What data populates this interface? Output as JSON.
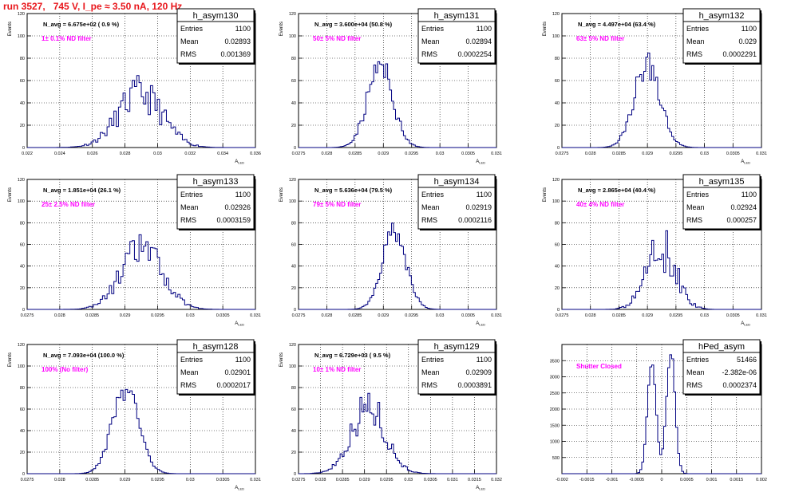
{
  "header": {
    "run_title": "run 3527,   745 V, I_pe ≈ 3.50 nA, 120 Hz"
  },
  "colors": {
    "title": "#e8161b",
    "annotation": "#ff00ff",
    "histogram": "#000080",
    "grid": "#000000"
  },
  "chart_data": [
    {
      "type": "histogram",
      "name": "h_asym130",
      "ylabel": "Events",
      "xlabel": "A_LED",
      "xlim": [
        0.022,
        0.036
      ],
      "ylim": [
        0,
        120
      ],
      "xticks": [
        "0.022",
        "0.024",
        "0.026",
        "0.028",
        "0.03",
        "0.032",
        "0.034",
        "0.036"
      ],
      "yticks": [
        "0",
        "20",
        "40",
        "60",
        "80",
        "100",
        "120"
      ],
      "stats": {
        "Entries": "1100",
        "Mean": "0.02893",
        "RMS": "0.001369"
      },
      "navg": "N_avg = 6.675e+02 ( 0.9 %)",
      "filter": "1± 0.1% ND filter",
      "mean": 0.02893,
      "rms": 0.001369,
      "peak": 48,
      "seed": 11,
      "jitter": 0.35
    },
    {
      "type": "histogram",
      "name": "h_asym131",
      "ylabel": "Events",
      "xlabel": "A_LED",
      "xlim": [
        0.0275,
        0.031
      ],
      "ylim": [
        0,
        120
      ],
      "xticks": [
        "0.0275",
        "0.028",
        "0.0285",
        "0.029",
        "0.0295",
        "0.03",
        "0.0305",
        "0.031"
      ],
      "yticks": [
        "0",
        "20",
        "40",
        "60",
        "80",
        "100",
        "120"
      ],
      "stats": {
        "Entries": "1100",
        "Mean": "0.02894",
        "RMS": "0.0002254"
      },
      "navg": "N_avg = 3.600e+04 (50.8 %)",
      "filter": "50± 5% ND filter",
      "mean": 0.02894,
      "rms": 0.0002254,
      "peak": 72,
      "seed": 23,
      "jitter": 0.2
    },
    {
      "type": "histogram",
      "name": "h_asym132",
      "ylabel": "Events",
      "xlabel": "A_LED",
      "xlim": [
        0.0275,
        0.031
      ],
      "ylim": [
        0,
        120
      ],
      "xticks": [
        "0.0275",
        "0.028",
        "0.0285",
        "0.029",
        "0.0295",
        "0.03",
        "0.0305",
        "0.031"
      ],
      "yticks": [
        "0",
        "20",
        "40",
        "60",
        "80",
        "100",
        "120"
      ],
      "stats": {
        "Entries": "1100",
        "Mean": "0.029",
        "RMS": "0.0002291"
      },
      "navg": "N_avg = 4.497e+04 (63.4 %)",
      "filter": "63± 5% ND filter",
      "mean": 0.029,
      "rms": 0.0002291,
      "peak": 74,
      "seed": 37,
      "jitter": 0.2
    },
    {
      "type": "histogram",
      "name": "h_asym133",
      "ylabel": "Events",
      "xlabel": "A_LED",
      "xlim": [
        0.0275,
        0.031
      ],
      "ylim": [
        0,
        120
      ],
      "xticks": [
        "0.0275",
        "0.028",
        "0.0285",
        "0.029",
        "0.0295",
        "0.03",
        "0.0305",
        "0.031"
      ],
      "yticks": [
        "0",
        "20",
        "40",
        "60",
        "80",
        "100",
        "120"
      ],
      "stats": {
        "Entries": "1100",
        "Mean": "0.02926",
        "RMS": "0.0003159"
      },
      "navg": "N_avg = 1.851e+04 (26.1 %)",
      "filter": "25± 2.5% ND filter",
      "mean": 0.02926,
      "rms": 0.0003159,
      "peak": 56,
      "seed": 41,
      "jitter": 0.3
    },
    {
      "type": "histogram",
      "name": "h_asym134",
      "ylabel": "Events",
      "xlabel": "A_LED",
      "xlim": [
        0.0275,
        0.031
      ],
      "ylim": [
        0,
        120
      ],
      "xticks": [
        "0.0275",
        "0.028",
        "0.0285",
        "0.029",
        "0.0295",
        "0.03",
        "0.0305",
        "0.031"
      ],
      "yticks": [
        "0",
        "20",
        "40",
        "60",
        "80",
        "100",
        "120"
      ],
      "stats": {
        "Entries": "1100",
        "Mean": "0.02919",
        "RMS": "0.0002116"
      },
      "navg": "N_avg = 5.636e+04 (79.5 %)",
      "filter": "79± 5% ND filter",
      "mean": 0.02919,
      "rms": 0.0002116,
      "peak": 72,
      "seed": 53,
      "jitter": 0.15
    },
    {
      "type": "histogram",
      "name": "h_asym135",
      "ylabel": "Events",
      "xlabel": "A_LED",
      "xlim": [
        0.0275,
        0.031
      ],
      "ylim": [
        0,
        120
      ],
      "xticks": [
        "0.0275",
        "0.028",
        "0.0285",
        "0.029",
        "0.0295",
        "0.03",
        "0.0305",
        "0.031"
      ],
      "yticks": [
        "0",
        "20",
        "40",
        "60",
        "80",
        "100",
        "120"
      ],
      "stats": {
        "Entries": "1100",
        "Mean": "0.02924",
        "RMS": "0.000257"
      },
      "navg": "N_avg = 2.865e+04 (40.4 %)",
      "filter": "40± 4% ND filter",
      "mean": 0.02924,
      "rms": 0.000257,
      "peak": 58,
      "seed": 67,
      "jitter": 0.4
    },
    {
      "type": "histogram",
      "name": "h_asym128",
      "ylabel": "Events",
      "xlabel": "A_LED",
      "xlim": [
        0.0275,
        0.031
      ],
      "ylim": [
        0,
        120
      ],
      "xticks": [
        "0.0275",
        "0.028",
        "0.0285",
        "0.029",
        "0.0295",
        "0.03",
        "0.0305",
        "0.031"
      ],
      "yticks": [
        "0",
        "20",
        "40",
        "60",
        "80",
        "100",
        "120"
      ],
      "stats": {
        "Entries": "1100",
        "Mean": "0.02901",
        "RMS": "0.0002017"
      },
      "navg": "N_avg = 7.093e+04 (100.0 %)",
      "filter": "100% (No filter)",
      "mean": 0.02901,
      "rms": 0.0002017,
      "peak": 78,
      "seed": 79,
      "jitter": 0.15
    },
    {
      "type": "histogram",
      "name": "h_asym129",
      "ylabel": "Events",
      "xlabel": "A_LED",
      "xlim": [
        0.0275,
        0.032
      ],
      "ylim": [
        0,
        120
      ],
      "xticks": [
        "0.0275",
        "0.028",
        "0.0285",
        "0.029",
        "0.0295",
        "0.03",
        "0.0305",
        "0.031",
        "0.0315",
        "0.032"
      ],
      "yticks": [
        "0",
        "20",
        "40",
        "60",
        "80",
        "100",
        "120"
      ],
      "stats": {
        "Entries": "1100",
        "Mean": "0.02909",
        "RMS": "0.0003891"
      },
      "navg": "N_avg = 6.729e+03 ( 9.5 %)",
      "filter": "10± 1% ND filter",
      "mean": 0.02909,
      "rms": 0.0003891,
      "peak": 62,
      "seed": 97,
      "jitter": 0.3
    },
    {
      "type": "histogram",
      "name": "hPed_asym",
      "ylabel": "",
      "xlabel": "",
      "xlim": [
        -0.002,
        0.002
      ],
      "ylim": [
        0,
        4000
      ],
      "xticks": [
        "-0.002",
        "-0.0015",
        "-0.001",
        "-0.0005",
        "0",
        "0.0005",
        "0.001",
        "0.0015",
        "0.002"
      ],
      "yticks": [
        "500",
        "1000",
        "1500",
        "2000",
        "2500",
        "3000",
        "3500"
      ],
      "stats": {
        "Entries": "51466",
        "Mean": "-2.382e-06",
        "RMS": "0.0002374"
      },
      "navg": "",
      "filter": "Shutter Closed",
      "bimodal": {
        "peak1": -0.0002,
        "peak2": 0.00018,
        "width": 8.5e-05,
        "height1": 3450,
        "height2": 3850
      },
      "seed": 131,
      "jitter": 0.05
    }
  ]
}
